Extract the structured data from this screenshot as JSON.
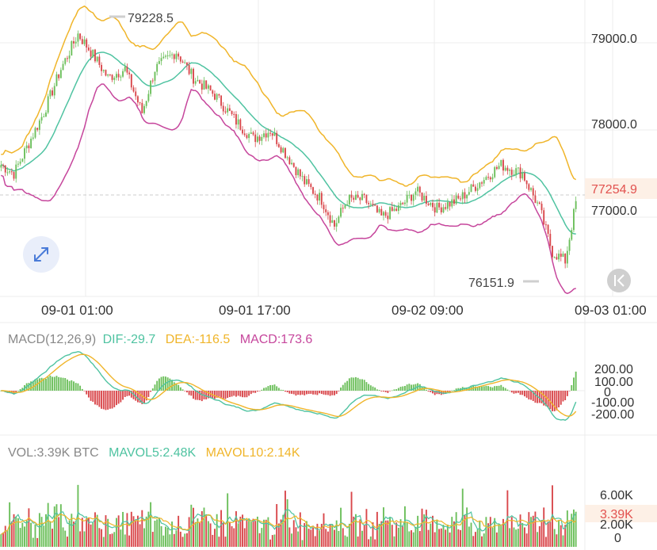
{
  "price_axis": {
    "ticks": [
      "79000.0",
      "78000.0",
      "77000.0"
    ],
    "current": "77254.9"
  },
  "markers": {
    "high": "79228.5",
    "low": "76151.9"
  },
  "time_axis": {
    "labels": [
      "09-01 01:00",
      "09-01 17:00",
      "09-02 09:00",
      "09-03 01:00"
    ]
  },
  "macd": {
    "title": "MACD(12,26,9)",
    "dif": "DIF:-29.7",
    "dea": "DEA:-116.5",
    "macd": "MACD:173.6",
    "ticks": [
      "200.00",
      "100.00",
      "0",
      "-100.00",
      "-200.00"
    ]
  },
  "volume": {
    "label": "VOL:3.39K BTC",
    "mavol5": "MAVOL5:2.48K",
    "mavol10": "MAVOL10:2.14K",
    "ticks": [
      "6.00K",
      "3.39K",
      "2.00K",
      "0"
    ]
  },
  "colors": {
    "up": "#6cbf5b",
    "down": "#d9474b",
    "ma_mid": "#4fc3a1",
    "band_upper": "#f0b52a",
    "band_lower": "#c6469c",
    "grid": "#ececec",
    "text": "#333333",
    "muted": "#999999",
    "current_bg": "#fdf0e6",
    "current_text": "#e2524f"
  },
  "icons": [
    "expand-icon",
    "back-icon"
  ],
  "chart_data": [
    {
      "type": "candlestick",
      "name": "price",
      "ylim": [
        76000,
        79400
      ],
      "x": [
        "09-01 01:00",
        "09-01 17:00",
        "09-02 09:00",
        "09-03 01:00"
      ],
      "anchor_points": [
        [
          0,
          77600
        ],
        [
          6,
          77500
        ],
        [
          12,
          77800
        ],
        [
          20,
          78200
        ],
        [
          28,
          78700
        ],
        [
          36,
          79100
        ],
        [
          42,
          78900
        ],
        [
          50,
          78600
        ],
        [
          58,
          78700
        ],
        [
          66,
          78200
        ],
        [
          72,
          78700
        ],
        [
          82,
          78900
        ],
        [
          90,
          78600
        ],
        [
          100,
          78400
        ],
        [
          110,
          78100
        ],
        [
          118,
          77900
        ],
        [
          126,
          78000
        ],
        [
          134,
          77700
        ],
        [
          142,
          77400
        ],
        [
          150,
          77200
        ],
        [
          156,
          76900
        ],
        [
          162,
          77200
        ],
        [
          170,
          77200
        ],
        [
          178,
          77000
        ],
        [
          186,
          77100
        ],
        [
          194,
          77300
        ],
        [
          204,
          77100
        ],
        [
          214,
          77200
        ],
        [
          224,
          77400
        ],
        [
          234,
          77600
        ],
        [
          244,
          77500
        ],
        [
          252,
          77100
        ],
        [
          258,
          76600
        ],
        [
          264,
          76500
        ],
        [
          270,
          77300
        ]
      ],
      "high": 79228.5,
      "low": 76151.9,
      "last": 77254.9,
      "overlays": [
        "middle band",
        "upper band",
        "lower band"
      ]
    },
    {
      "type": "bar+line",
      "name": "MACD(12,26,9)",
      "ylim": [
        -250,
        250
      ],
      "dif": -29.7,
      "dea": -116.5,
      "macd": 173.6
    },
    {
      "type": "bar+line",
      "name": "VOL",
      "unit": "BTC",
      "ylim": [
        0,
        7000
      ],
      "last_volume": 3390,
      "mavol5": 2480,
      "mavol10": 2140
    }
  ]
}
